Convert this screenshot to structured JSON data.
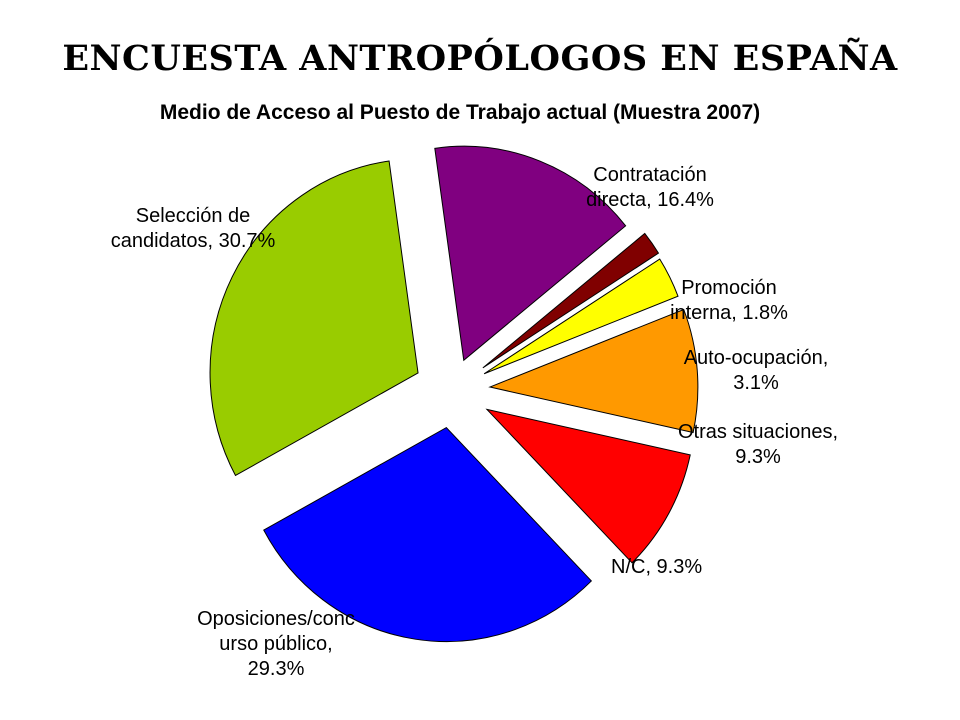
{
  "page": {
    "title": "ENCUESTA ANTROPÓLOGOS EN ESPAÑA"
  },
  "chart_data": {
    "type": "pie",
    "title": "Medio de Acceso al Puesto de Trabajo actual (Muestra 2007)",
    "exploded": true,
    "start_angle_deg": -8,
    "direction": "clockwise",
    "slices": [
      {
        "id": "contratacion",
        "label_lines": [
          "Contratación",
          "directa, 16.4%"
        ],
        "category": "Contratación directa",
        "value": 16.4,
        "color": "#800080"
      },
      {
        "id": "promocion",
        "label_lines": [
          "Promoción",
          "interna, 1.8%"
        ],
        "category": "Promoción interna",
        "value": 1.8,
        "color": "#800000"
      },
      {
        "id": "autoocupacion",
        "label_lines": [
          "Auto-ocupación,",
          "3.1%"
        ],
        "category": "Auto-ocupación",
        "value": 3.1,
        "color": "#ffff00"
      },
      {
        "id": "otras",
        "label_lines": [
          "Otras situaciones,",
          "9.3%"
        ],
        "category": "Otras situaciones",
        "value": 9.3,
        "color": "#ff9900"
      },
      {
        "id": "nc",
        "label_lines": [
          "N/C, 9.3%"
        ],
        "category": "N/C",
        "value": 9.3,
        "color": "#ff0000"
      },
      {
        "id": "oposiciones",
        "label_lines": [
          "Oposiciones/conc",
          "urso público,",
          "29.3%"
        ],
        "category": "Oposiciones/concurso público",
        "value": 29.3,
        "color": "#0000ff"
      },
      {
        "id": "seleccion",
        "label_lines": [
          "Selección de",
          "candidatos, 30.7%"
        ],
        "category": "Selección de candidatos",
        "value": 30.7,
        "color": "#99cc00"
      }
    ]
  }
}
